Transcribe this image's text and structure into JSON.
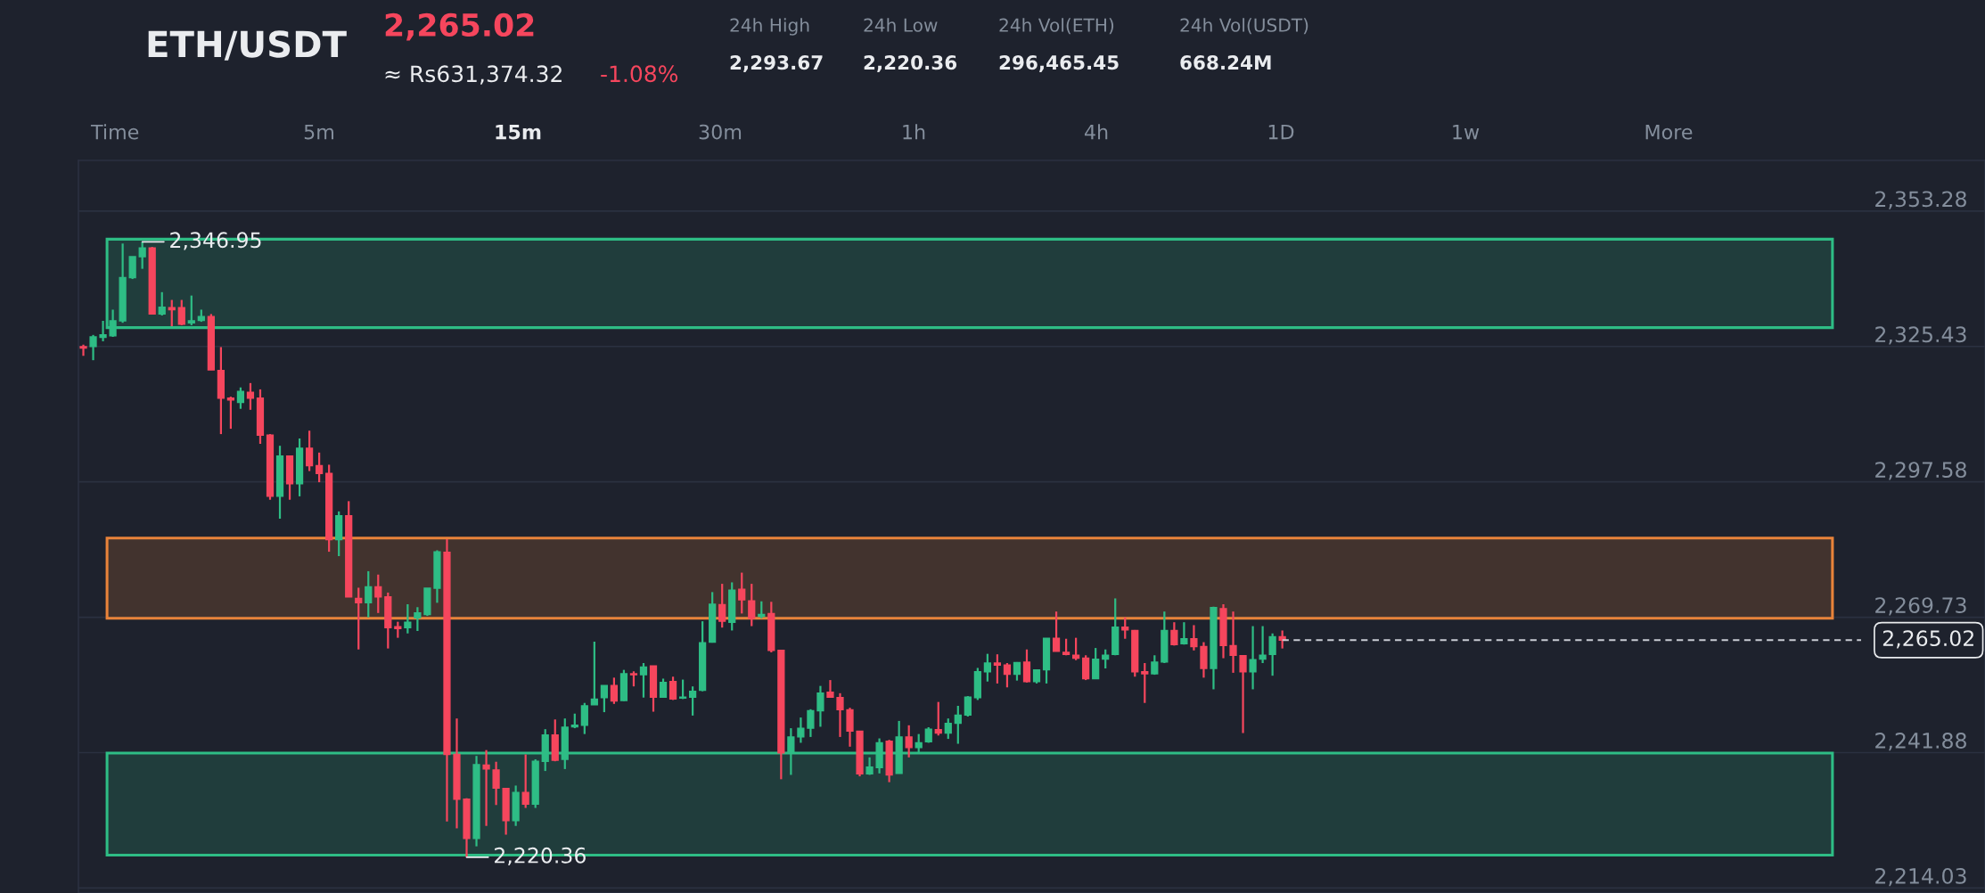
{
  "chart_data": {
    "type": "candlestick",
    "title": "ETH/USDT",
    "categories": [
      null,
      null,
      null,
      null,
      null,
      null,
      null,
      null,
      null,
      null,
      null,
      null,
      null,
      null,
      null,
      null,
      null,
      null,
      null,
      null,
      null,
      null,
      null,
      null,
      null,
      null,
      null,
      null,
      null,
      null,
      null,
      null,
      null,
      null,
      null,
      null,
      null,
      null,
      null,
      null,
      null,
      null,
      null,
      null,
      null,
      null,
      null,
      null,
      null,
      null,
      null,
      null,
      null,
      null,
      null,
      null,
      null,
      null,
      null,
      null,
      null,
      null,
      null,
      null,
      null,
      null,
      null,
      null,
      null,
      null,
      null,
      null,
      null,
      null,
      null,
      null,
      null,
      null,
      null,
      null,
      null,
      null,
      null,
      null,
      null,
      null,
      null,
      null,
      null,
      null,
      null,
      null,
      null,
      null,
      null,
      null,
      null,
      null,
      null,
      null,
      null,
      null,
      null,
      null,
      null,
      null,
      null,
      null,
      null,
      null,
      null,
      null,
      null,
      null,
      null,
      null,
      null,
      null,
      null,
      null,
      null,
      null,
      null,
      null,
      null,
      null,
      null,
      null,
      null,
      null,
      null,
      null,
      null,
      null,
      null,
      null,
      null,
      null,
      null,
      null,
      null,
      null,
      null,
      null,
      null,
      null,
      null,
      null,
      null,
      null,
      null,
      null,
      null,
      null,
      null,
      null,
      null,
      null,
      null,
      null,
      null,
      null,
      null,
      null,
      null,
      null,
      null,
      null,
      null,
      null,
      null,
      null,
      null,
      null,
      null,
      null,
      null,
      null,
      null,
      null,
      null,
      null,
      null,
      null,
      null,
      null,
      null,
      null,
      null,
      null,
      null,
      null,
      null,
      null
    ],
    "colors": [
      "#f6465d",
      "#2ebd85",
      "#2ebd85",
      "#2ebd85",
      "#2ebd85",
      "#2ebd85",
      "#2ebd85",
      "#f6465d",
      "#2ebd85",
      "#f6465d",
      "#f6465d",
      "#2ebd85",
      "#2ebd85",
      "#f6465d",
      "#f6465d",
      "#f6465d",
      "#2ebd85",
      "#f6465d",
      "#f6465d",
      "#f6465d",
      "#2ebd85",
      "#f6465d",
      "#2ebd85",
      "#f6465d",
      "#f6465d",
      "#f6465d",
      "#2ebd85",
      "#f6465d",
      "#f6465d",
      "#2ebd85",
      "#f6465d",
      "#f6465d",
      "#f6465d",
      "#2ebd85",
      "#2ebd85",
      "#2ebd85",
      "#2ebd85",
      "#f6465d",
      "#f6465d",
      "#f6465d",
      "#2ebd85",
      "#f6465d",
      "#f6465d",
      "#f6465d",
      "#2ebd85",
      "#f6465d",
      "#2ebd85",
      "#2ebd85",
      "#f6465d",
      "#2ebd85",
      "#2ebd85",
      "#2ebd85",
      "#2ebd85",
      "#2ebd85",
      "#f6465d",
      "#2ebd85",
      "#f6465d",
      "#2ebd85",
      "#f6465d",
      "#2ebd85",
      "#f6465d",
      "#2ebd85",
      "#2ebd85",
      "#2ebd85",
      "#2ebd85",
      "#f6465d",
      "#2ebd85",
      "#f6465d",
      "#f6465d",
      "#2ebd85",
      "#f6465d",
      "#f6465d",
      "#2ebd85",
      "#2ebd85",
      "#2ebd85",
      "#2ebd85",
      "#f6465d",
      "#f6465d",
      "#f6465d",
      "#f6465d",
      "#2ebd85",
      "#2ebd85",
      "#f6465d",
      "#2ebd85",
      "#f6465d",
      "#2ebd85",
      "#2ebd85",
      "#f6465d",
      "#2ebd85",
      "#2ebd85",
      "#2ebd85",
      "#2ebd85",
      "#2ebd85",
      "#f6465d",
      "#f6465d",
      "#2ebd85",
      "#f6465d",
      "#2ebd85",
      "#2ebd85",
      "#f6465d",
      "#f6465d",
      "#f6465d",
      "#f6465d",
      "#2ebd85",
      "#2ebd85",
      "#2ebd85",
      "#f6465d",
      "#f6465d",
      "#f6465d",
      "#2ebd85",
      "#2ebd85",
      "#f6465d",
      "#2ebd85",
      "#f6465d",
      "#f6465d",
      "#2ebd85",
      "#f6465d",
      "#f6465d",
      "#f6465d",
      "#2ebd85",
      "#2ebd85",
      "#2ebd85",
      "#f6465d",
      null,
      null,
      null,
      null,
      null,
      null,
      null,
      null,
      null,
      null,
      null,
      null,
      null,
      null,
      null,
      null,
      null,
      null,
      null,
      null,
      null,
      null,
      null,
      null,
      null,
      null,
      null,
      null,
      null,
      null,
      null,
      null,
      null,
      null,
      null,
      null,
      null,
      null,
      null,
      null,
      null,
      null,
      null,
      null,
      null,
      null,
      null,
      null,
      null,
      null,
      null,
      null,
      null,
      null,
      null,
      null,
      null,
      null,
      null,
      null,
      null,
      null,
      null,
      null,
      null,
      null,
      null,
      null,
      null,
      null,
      null
    ],
    "ohlc": [
      [
        2325.4,
        2325.8,
        2323.5,
        2325.1
      ],
      [
        2325.4,
        2327.8,
        2322.6,
        2327.4
      ],
      [
        2327.3,
        2330.7,
        2326.5,
        2327.8
      ],
      [
        2327.6,
        2333.0,
        2327.4,
        2330.7
      ],
      [
        2330.7,
        2346.6,
        2330.3,
        2339.6
      ],
      [
        2339.6,
        2343.9,
        2339.3,
        2343.9
      ],
      [
        2343.9,
        2346.95,
        2341.4,
        2345.7
      ],
      [
        2345.7,
        2345.9,
        2332.1,
        2332.1
      ],
      [
        2332.1,
        2336.6,
        2331.8,
        2333.5
      ],
      [
        2333.4,
        2335.0,
        2329.6,
        2333.0
      ],
      [
        2333.4,
        2335.0,
        2329.8,
        2330.0
      ],
      [
        2330.3,
        2335.9,
        2329.8,
        2330.7
      ],
      [
        2330.8,
        2333.0,
        2330.5,
        2331.6
      ],
      [
        2331.6,
        2332.1,
        2320.6,
        2320.6
      ],
      [
        2320.5,
        2325.3,
        2307.4,
        2314.8
      ],
      [
        2314.8,
        2315.1,
        2308.5,
        2314.4
      ],
      [
        2313.9,
        2317.0,
        2312.6,
        2316.2
      ],
      [
        2316.0,
        2317.9,
        2312.4,
        2314.8
      ],
      [
        2314.8,
        2316.6,
        2305.4,
        2307.2
      ],
      [
        2307.2,
        2307.4,
        2293.9,
        2294.6
      ],
      [
        2294.6,
        2305.0,
        2290.0,
        2302.9
      ],
      [
        2302.9,
        2302.9,
        2293.9,
        2297.2
      ],
      [
        2297.2,
        2306.5,
        2294.6,
        2304.5
      ],
      [
        2304.5,
        2308.1,
        2299.8,
        2300.9
      ],
      [
        2300.9,
        2303.6,
        2297.5,
        2299.3
      ],
      [
        2299.3,
        2301.1,
        2283.2,
        2285.7
      ],
      [
        2285.7,
        2291.5,
        2282.3,
        2290.6
      ],
      [
        2290.6,
        2293.6,
        2273.9,
        2273.9
      ],
      [
        2273.6,
        2275.8,
        2263.1,
        2272.7
      ],
      [
        2272.7,
        2279.2,
        2269.7,
        2276.0
      ],
      [
        2276.0,
        2278.5,
        2270.6,
        2273.9
      ],
      [
        2273.9,
        2274.8,
        2263.3,
        2267.6
      ],
      [
        2267.8,
        2268.8,
        2265.5,
        2267.4
      ],
      [
        2267.6,
        2272.4,
        2266.4,
        2268.7
      ],
      [
        2269.6,
        2271.8,
        2266.9,
        2270.6
      ],
      [
        2270.3,
        2275.7,
        2270.0,
        2275.7
      ],
      [
        2275.7,
        2283.5,
        2272.7,
        2283.2
      ],
      [
        2283.1,
        2285.8,
        2227.7,
        2241.5
      ],
      [
        2241.5,
        2248.9,
        2226.3,
        2232.3
      ],
      [
        2232.3,
        2232.5,
        2220.36,
        2224.2
      ],
      [
        2224.2,
        2241.2,
        2222.6,
        2239.4
      ],
      [
        2239.3,
        2242.4,
        2226.8,
        2238.5
      ],
      [
        2238.3,
        2240.0,
        2231.1,
        2234.6
      ],
      [
        2234.5,
        2234.5,
        2225.0,
        2227.9
      ],
      [
        2227.9,
        2235.1,
        2226.8,
        2233.7
      ],
      [
        2233.7,
        2241.5,
        2230.5,
        2231.3
      ],
      [
        2231.3,
        2240.5,
        2230.5,
        2240.1
      ],
      [
        2240.1,
        2246.7,
        2238.1,
        2245.5
      ],
      [
        2245.5,
        2248.7,
        2240.1,
        2240.3
      ],
      [
        2240.5,
        2248.9,
        2238.5,
        2247.1
      ],
      [
        2247.2,
        2249.9,
        2246.9,
        2247.5
      ],
      [
        2247.5,
        2252.1,
        2245.7,
        2251.5
      ],
      [
        2251.7,
        2264.7,
        2251.7,
        2252.9
      ],
      [
        2253.2,
        2255.7,
        2250.2,
        2255.7
      ],
      [
        2255.7,
        2257.3,
        2251.9,
        2252.5
      ],
      [
        2252.6,
        2258.9,
        2252.5,
        2258.1
      ],
      [
        2258.1,
        2258.6,
        2255.5,
        2257.9
      ],
      [
        2257.9,
        2260.3,
        2253.2,
        2259.5
      ],
      [
        2259.7,
        2259.7,
        2250.3,
        2253.3
      ],
      [
        2253.3,
        2257.1,
        2253.2,
        2256.3
      ],
      [
        2256.5,
        2257.5,
        2252.7,
        2252.9
      ],
      [
        2253.1,
        2256.9,
        2252.9,
        2253.3
      ],
      [
        2253.3,
        2255.5,
        2249.5,
        2254.5
      ],
      [
        2254.7,
        2268.9,
        2254.5,
        2264.5
      ],
      [
        2264.6,
        2274.9,
        2264.5,
        2272.4
      ],
      [
        2272.3,
        2276.6,
        2267.6,
        2268.9
      ],
      [
        2268.7,
        2276.9,
        2267.0,
        2275.3
      ],
      [
        2275.5,
        2278.9,
        2270.5,
        2273.3
      ],
      [
        2273.1,
        2276.6,
        2267.9,
        2269.5
      ],
      [
        2269.9,
        2273.0,
        2269.5,
        2270.3
      ],
      [
        2270.5,
        2272.9,
        2262.5,
        2262.9
      ],
      [
        2262.9,
        2262.9,
        2236.4,
        2241.8
      ],
      [
        2241.8,
        2246.9,
        2237.3,
        2245.1
      ],
      [
        2245.1,
        2249.1,
        2243.9,
        2246.9
      ],
      [
        2246.9,
        2250.8,
        2245.1,
        2250.5
      ],
      [
        2250.5,
        2255.6,
        2247.2,
        2254.1
      ],
      [
        2254.3,
        2256.8,
        2253.2,
        2253.3
      ],
      [
        2253.2,
        2254.1,
        2245.1,
        2250.7
      ],
      [
        2250.7,
        2251.1,
        2243.1,
        2246.3
      ],
      [
        2246.3,
        2246.3,
        2237.0,
        2237.5
      ],
      [
        2237.5,
        2240.9,
        2237.3,
        2238.9
      ],
      [
        2238.8,
        2244.8,
        2237.6,
        2243.9
      ],
      [
        2244.2,
        2244.5,
        2235.8,
        2237.3
      ],
      [
        2237.6,
        2248.4,
        2237.6,
        2245.1
      ],
      [
        2245.1,
        2247.5,
        2240.9,
        2242.9
      ],
      [
        2242.9,
        2245.7,
        2241.8,
        2243.9
      ],
      [
        2244.1,
        2247.1,
        2243.9,
        2246.7
      ],
      [
        2246.6,
        2252.3,
        2245.4,
        2245.9
      ],
      [
        2245.9,
        2248.9,
        2244.7,
        2247.9
      ],
      [
        2247.9,
        2251.5,
        2243.7,
        2249.6
      ],
      [
        2249.6,
        2253.5,
        2249.3,
        2253.3
      ],
      [
        2253.2,
        2259.3,
        2252.7,
        2258.5
      ],
      [
        2258.5,
        2262.2,
        2256.5,
        2260.3
      ],
      [
        2260.3,
        2262.1,
        2256.1,
        2259.9
      ],
      [
        2259.9,
        2260.3,
        2255.3,
        2258.0
      ],
      [
        2258.0,
        2260.5,
        2256.7,
        2260.4
      ],
      [
        2260.5,
        2263.1,
        2256.3,
        2256.5
      ],
      [
        2256.5,
        2258.9,
        2256.1,
        2258.9
      ],
      [
        2258.9,
        2265.4,
        2256.1,
        2265.4
      ],
      [
        2265.4,
        2270.9,
        2262.7,
        2262.7
      ],
      [
        2262.5,
        2265.3,
        2261.9,
        2262.1
      ],
      [
        2261.9,
        2265.5,
        2260.9,
        2261.3
      ],
      [
        2261.3,
        2261.9,
        2256.8,
        2257.1
      ],
      [
        2257.1,
        2263.4,
        2257.1,
        2261.1
      ],
      [
        2261.1,
        2263.1,
        2259.2,
        2261.9
      ],
      [
        2262.1,
        2273.6,
        2261.9,
        2267.7
      ],
      [
        2267.7,
        2269.7,
        2265.3,
        2267.1
      ],
      [
        2267.0,
        2267.1,
        2257.5,
        2258.5
      ],
      [
        2258.5,
        2260.3,
        2252.1,
        2258.1
      ],
      [
        2258.1,
        2261.9,
        2257.9,
        2260.5
      ],
      [
        2260.5,
        2270.9,
        2260.3,
        2267.0
      ],
      [
        2267.0,
        2268.7,
        2263.9,
        2264.1
      ],
      [
        2264.3,
        2268.7,
        2264.1,
        2265.3
      ],
      [
        2265.3,
        2268.1,
        2262.9,
        2263.7
      ],
      [
        2263.7,
        2264.6,
        2257.3,
        2259.2
      ],
      [
        2259.2,
        2271.9,
        2254.9,
        2271.7
      ],
      [
        2271.5,
        2272.4,
        2261.3,
        2263.9
      ],
      [
        2263.9,
        2270.9,
        2258.3,
        2261.9
      ],
      [
        2261.8,
        2261.9,
        2245.9,
        2258.5
      ],
      [
        2258.5,
        2267.9,
        2254.9,
        2261.0
      ],
      [
        2261.1,
        2267.9,
        2260.3,
        2261.9
      ],
      [
        2262.1,
        2266.4,
        2257.7,
        2265.7
      ],
      [
        2265.7,
        2267.0,
        2263.3,
        2265.02
      ],
      null,
      null,
      null,
      null,
      null,
      null,
      null,
      null,
      null,
      null,
      null,
      null,
      null,
      null,
      null,
      null,
      null,
      null,
      null,
      null,
      null,
      null,
      null,
      null,
      null,
      null,
      null,
      null,
      null,
      null,
      null,
      null,
      null,
      null,
      null,
      null,
      null,
      null,
      null,
      null,
      null,
      null,
      null,
      null,
      null,
      null,
      null,
      null,
      null,
      null,
      null,
      null,
      null,
      null,
      null,
      null,
      null,
      null,
      null,
      null,
      null,
      null,
      null,
      null,
      null,
      null,
      null,
      null,
      null,
      null,
      null
    ],
    "ylim": [
      2213.0,
      2363.7
    ],
    "yticks": [
      {
        "value": 2214.03,
        "label": "2,214.03"
      },
      {
        "value": 2241.88,
        "label": "2,241.88"
      },
      {
        "value": 2269.73,
        "label": "2,269.73"
      },
      {
        "value": 2297.58,
        "label": "2,297.58"
      },
      {
        "value": 2325.43,
        "label": "2,325.43"
      },
      {
        "value": 2353.28,
        "label": "2,353.28"
      }
    ],
    "grid": "y",
    "tick_labels": "y",
    "bands": [
      {
        "axis": "y",
        "from": 2329.3,
        "to": 2347.5,
        "color": "#2ebd85"
      },
      {
        "axis": "y",
        "from": 2269.5,
        "to": 2286.0,
        "color": "#e8833a"
      },
      {
        "axis": "y",
        "from": 2220.8,
        "to": 2241.8,
        "color": "#2ebd85"
      }
    ],
    "ref_lines": [
      {
        "axis": "y",
        "value": 2265.02,
        "label": "2,265.02",
        "line_style": "dashed"
      }
    ],
    "annotations": [
      {
        "text": "2,346.95",
        "y": 2346.95
      },
      {
        "text": "2,220.36",
        "y": 2220.36
      },
      "2,265.02",
      "≈ Rs631,374.32",
      "-1.08%",
      "24h High",
      "2,293.67",
      "24h Low",
      "2,220.36",
      "24h Vol(ETH)",
      "296,465.45",
      "24h Vol(USDT)",
      "668.24M",
      "Time",
      "5m",
      "15m",
      "30m",
      "1h",
      "4h",
      "1D",
      "1w",
      "More"
    ]
  }
}
